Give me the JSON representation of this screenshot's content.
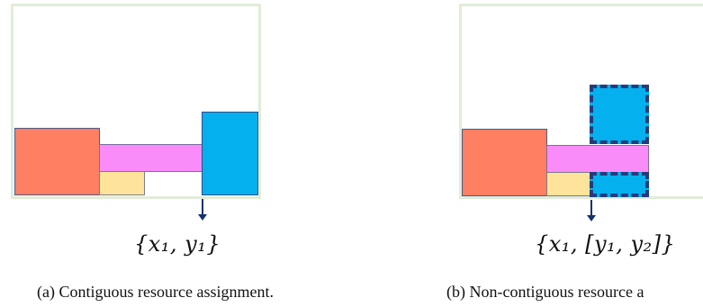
{
  "subfigures": [
    {
      "formula": "{x₁, y₁}",
      "caption": "(a) Contiguous resource assignment."
    },
    {
      "formula": "{x₁, [y₁, y₂]}",
      "caption": "(b) Non-contiguous resource a"
    }
  ],
  "colors": {
    "frame": "#e2edd9",
    "red": "#ff7f62",
    "pink": "#f98cf9",
    "yellow": "#fde49a",
    "blue": "#04b1ee",
    "dash": "#253b7c",
    "arrow": "#16306b"
  }
}
